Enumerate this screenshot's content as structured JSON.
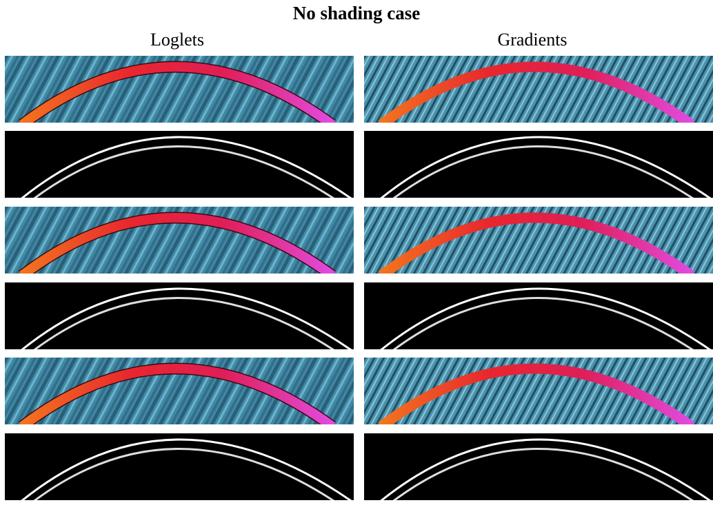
{
  "title": "No shading case",
  "columns": [
    "Loglets",
    "Gradients"
  ]
}
